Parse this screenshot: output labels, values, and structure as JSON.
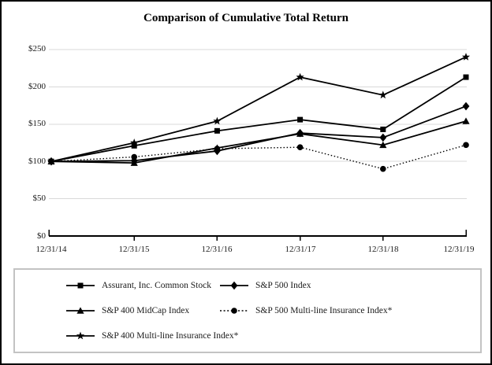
{
  "title": "Comparison of Cumulative Total Return",
  "chart_data": {
    "type": "line",
    "x_labels": [
      "12/31/14",
      "12/31/15",
      "12/31/16",
      "12/31/17",
      "12/31/18",
      "12/31/19"
    ],
    "y_tick_labels": [
      "$250",
      "$200",
      "$150",
      "$100",
      "$50",
      "$0"
    ],
    "y_ticks": [
      250,
      200,
      150,
      100,
      50,
      0
    ],
    "ylim": [
      0,
      250
    ],
    "grid": true,
    "legend_position": "bottom-box",
    "series": [
      {
        "name": "Assurant, Inc. Common Stock",
        "marker": "square",
        "line": "solid",
        "color": "#000000",
        "values": [
          100,
          121,
          141,
          156,
          143,
          213
        ]
      },
      {
        "name": "S&P 500 Index",
        "marker": "diamond",
        "line": "solid",
        "color": "#000000",
        "values": [
          100,
          101,
          114,
          138,
          132,
          174
        ]
      },
      {
        "name": "S&P 400 MidCap Index",
        "marker": "triangle",
        "line": "solid",
        "color": "#000000",
        "values": [
          100,
          98,
          118,
          137,
          122,
          154
        ]
      },
      {
        "name": "S&P 500 Multi-line Insurance Index*",
        "marker": "circle",
        "line": "dotted",
        "color": "#000000",
        "values": [
          100,
          106,
          117,
          119,
          90,
          122
        ]
      },
      {
        "name": "S&P 400 Multi-line Insurance Index*",
        "marker": "star",
        "line": "solid",
        "color": "#000000",
        "values": [
          100,
          125,
          154,
          213,
          189,
          240
        ]
      }
    ]
  },
  "colors": {
    "gridline": "#d9d9d9",
    "axis": "#000000",
    "legend_border": "#c3c3c3",
    "frame_border": "#000000"
  }
}
